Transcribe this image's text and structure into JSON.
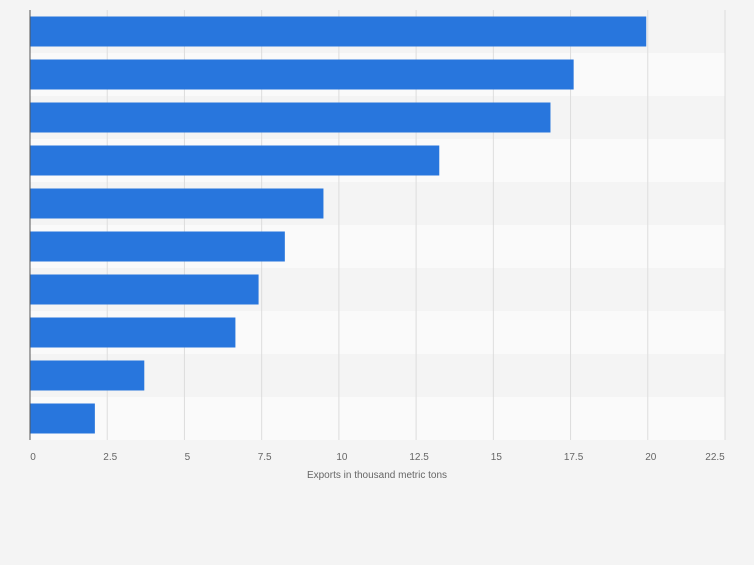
{
  "chart_data": {
    "type": "bar",
    "orientation": "horizontal",
    "categories": [
      "",
      "",
      "",
      "",
      "",
      "",
      "",
      "",
      "",
      ""
    ],
    "values": [
      19.95,
      17.6,
      16.85,
      13.25,
      9.5,
      8.25,
      7.4,
      6.65,
      3.7,
      2.1
    ],
    "xlabel": "Exports in thousand metric tons",
    "ylabel": "",
    "xlim": [
      0,
      22.5
    ],
    "xticks": [
      "0",
      "2.5",
      "5",
      "7.5",
      "10",
      "12.5",
      "15",
      "17.5",
      "20",
      "22.5"
    ],
    "grid": true,
    "colors": {
      "bar": "#2876dd",
      "band_even": "#f4f4f4",
      "band_odd": "#fafafa",
      "grid": "#dddddd",
      "axis": "#555555",
      "label": "#666666"
    }
  }
}
